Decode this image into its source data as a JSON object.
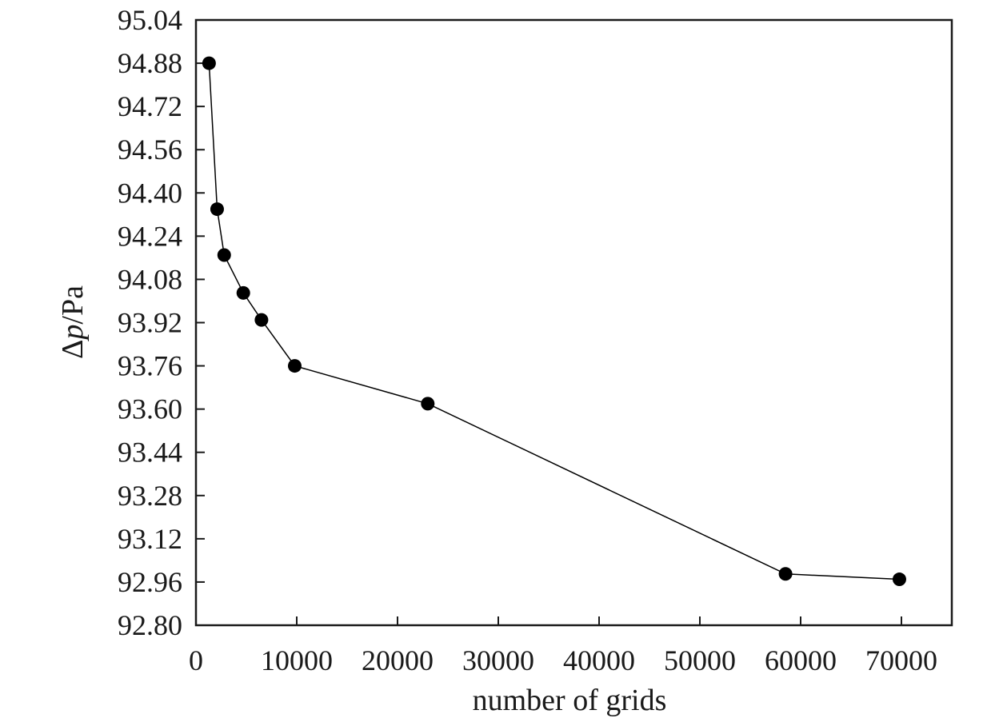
{
  "chart_data": {
    "type": "line",
    "title": "",
    "xlabel": "number of grids",
    "ylabel_parts": {
      "delta": "Δ",
      "var": "p",
      "unit": "/Pa"
    },
    "xlim": [
      0,
      75000
    ],
    "ylim": [
      92.8,
      95.04
    ],
    "x_ticks": [
      0,
      10000,
      20000,
      30000,
      40000,
      50000,
      60000,
      70000
    ],
    "y_ticks": [
      92.8,
      92.96,
      93.12,
      93.28,
      93.44,
      93.6,
      93.76,
      93.92,
      94.08,
      94.24,
      94.4,
      94.56,
      94.72,
      94.88,
      95.04
    ],
    "grid": false,
    "legend": "none",
    "series": [
      {
        "x": [
          1300,
          2100,
          2800,
          4700,
          6500,
          9800,
          23000,
          58500,
          69800
        ],
        "y": [
          94.88,
          94.34,
          94.17,
          94.03,
          93.93,
          93.76,
          93.62,
          92.99,
          92.97
        ]
      }
    ],
    "colors": {
      "line": "#000000",
      "marker": "#000000",
      "axis": "#1a1a1a"
    }
  }
}
